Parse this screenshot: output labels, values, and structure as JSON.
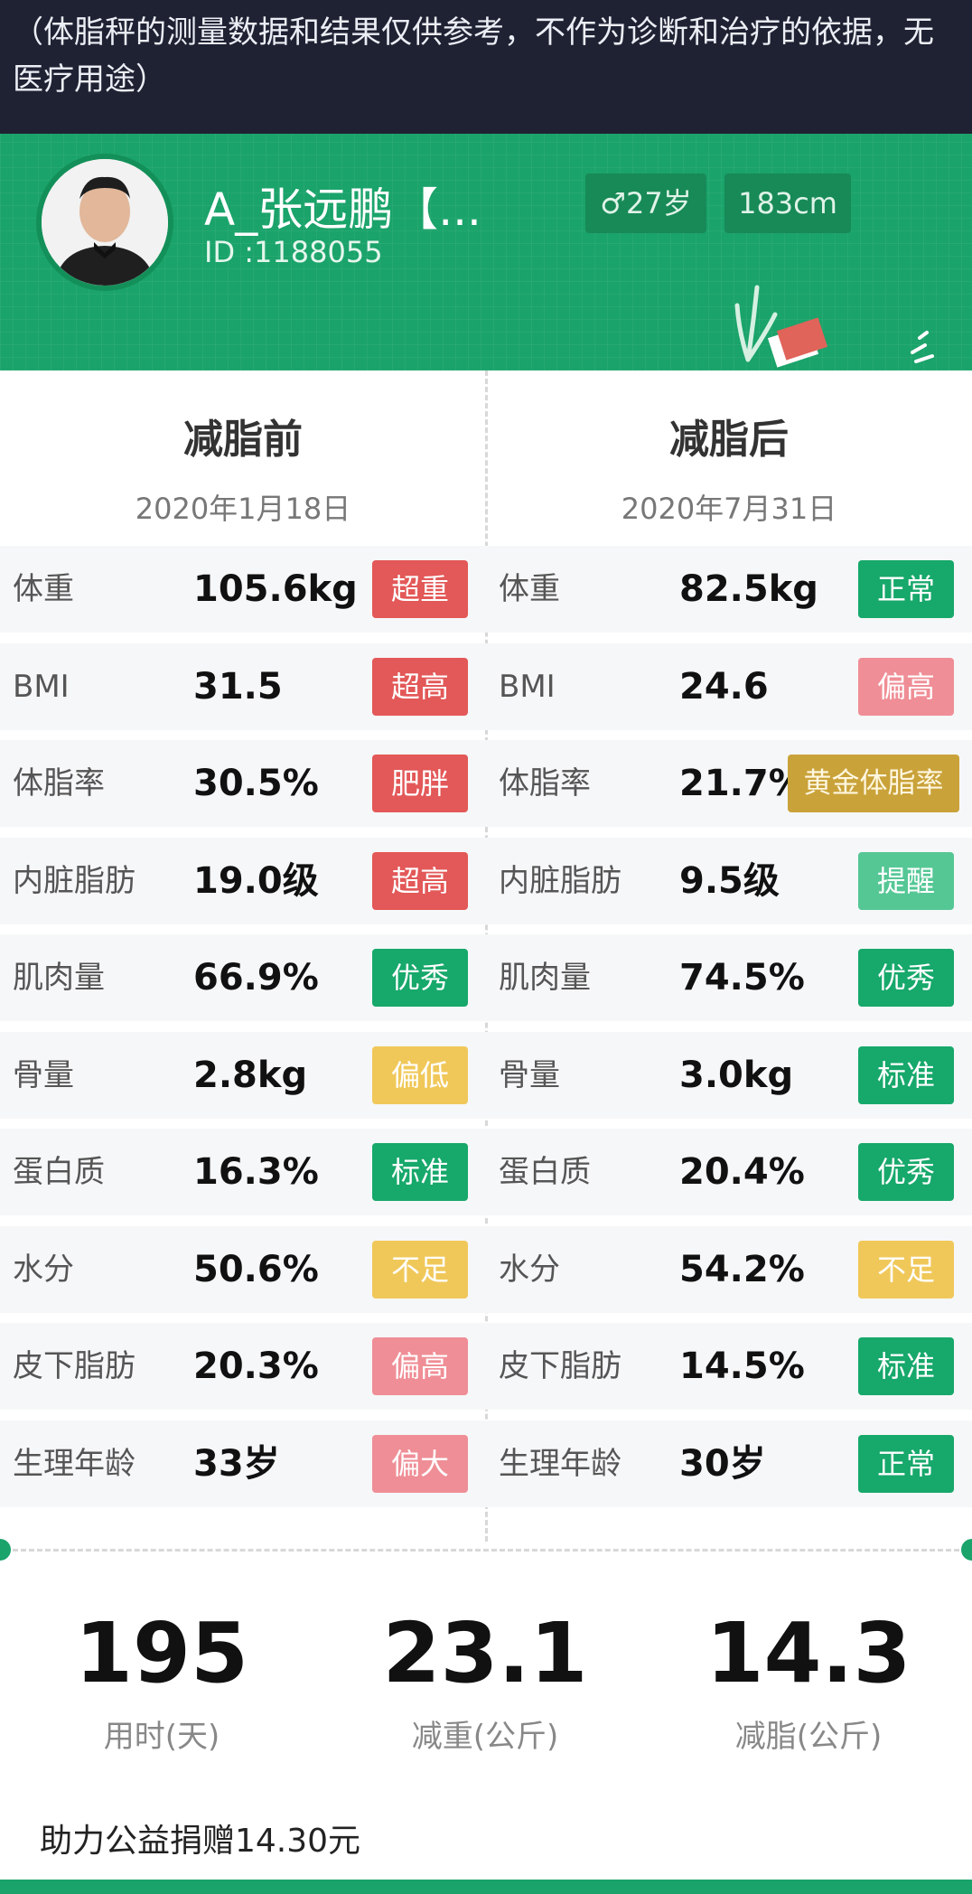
{
  "disclaimer": "（体脂秤的测量数据和结果仅供参考，不作为诊断和治疗的依据，无医疗用途）",
  "profile": {
    "name": "A_张远鹏【...",
    "id": "ID :1188055",
    "gender_age": "♂27岁",
    "height": "183cm"
  },
  "colors": {
    "green": "#1aa36a",
    "dark_green": "#17a86b",
    "light_green": "#55c795",
    "red": "#e35858",
    "pink": "#ef8e96",
    "yellow": "#f0c85a",
    "gold": "#c9a23a"
  },
  "before": {
    "title": "减脂前",
    "date": "2020年1月18日",
    "rows": [
      {
        "name": "体重",
        "value": "105.6kg",
        "badge": "超重",
        "level": "red"
      },
      {
        "name": "BMI",
        "value": "31.5",
        "badge": "超高",
        "level": "red"
      },
      {
        "name": "体脂率",
        "value": "30.5%",
        "badge": "肥胖",
        "level": "red"
      },
      {
        "name": "内脏脂肪",
        "value": "19.0级",
        "badge": "超高",
        "level": "red"
      },
      {
        "name": "肌肉量",
        "value": "66.9%",
        "badge": "优秀",
        "level": "green"
      },
      {
        "name": "骨量",
        "value": "2.8kg",
        "badge": "偏低",
        "level": "yellow"
      },
      {
        "name": "蛋白质",
        "value": "16.3%",
        "badge": "标准",
        "level": "green"
      },
      {
        "name": "水分",
        "value": "50.6%",
        "badge": "不足",
        "level": "yellow"
      },
      {
        "name": "皮下脂肪",
        "value": "20.3%",
        "badge": "偏高",
        "level": "pink"
      },
      {
        "name": "生理年龄",
        "value": "33岁",
        "badge": "偏大",
        "level": "pink"
      }
    ]
  },
  "after": {
    "title": "减脂后",
    "date": "2020年7月31日",
    "rows": [
      {
        "name": "体重",
        "value": "82.5kg",
        "badge": "正常",
        "level": "green"
      },
      {
        "name": "BMI",
        "value": "24.6",
        "badge": "偏高",
        "level": "pink"
      },
      {
        "name": "体脂率",
        "value": "21.7%",
        "badge": "黄金体脂率",
        "level": "gold"
      },
      {
        "name": "内脏脂肪",
        "value": "9.5级",
        "badge": "提醒",
        "level": "lightgreen"
      },
      {
        "name": "肌肉量",
        "value": "74.5%",
        "badge": "优秀",
        "level": "green"
      },
      {
        "name": "骨量",
        "value": "3.0kg",
        "badge": "标准",
        "level": "green"
      },
      {
        "name": "蛋白质",
        "value": "20.4%",
        "badge": "优秀",
        "level": "green"
      },
      {
        "name": "水分",
        "value": "54.2%",
        "badge": "不足",
        "level": "yellow"
      },
      {
        "name": "皮下脂肪",
        "value": "14.5%",
        "badge": "标准",
        "level": "green"
      },
      {
        "name": "生理年龄",
        "value": "30岁",
        "badge": "正常",
        "level": "green"
      }
    ]
  },
  "stats": [
    {
      "value": "195",
      "label": "用时(天)"
    },
    {
      "value": "23.1",
      "label": "减重(公斤)"
    },
    {
      "value": "14.3",
      "label": "减脂(公斤)"
    }
  ],
  "donation": "助力公益捐赠14.30元"
}
